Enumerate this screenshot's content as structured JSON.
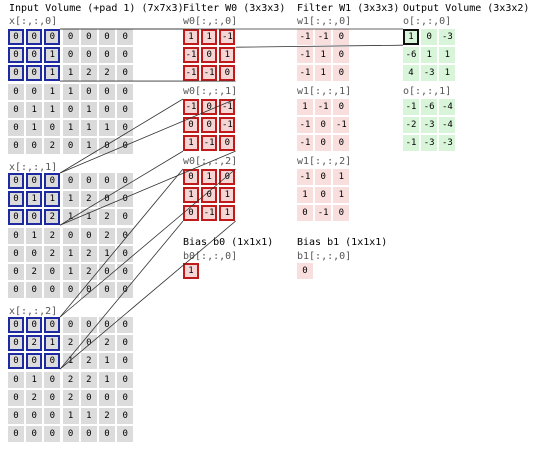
{
  "labels": {
    "input_title": "Input Volume (+pad 1) (7x7x3)",
    "filter0_title": "Filter W0 (3x3x3)",
    "filter1_title": "Filter W1 (3x3x3)",
    "output_title": "Output Volume (3x3x2)",
    "bias0_title": "Bias b0 (1x1x1)",
    "bias1_title": "Bias b1 (1x1x1)"
  },
  "input": [
    {
      "label": "x[:,:,0]",
      "grid": [
        [
          "0",
          "0",
          "0",
          "0",
          "0",
          "0",
          "0"
        ],
        [
          "0",
          "0",
          "1",
          "0",
          "0",
          "0",
          "0"
        ],
        [
          "0",
          "0",
          "1",
          "1",
          "2",
          "2",
          "0"
        ],
        [
          "0",
          "0",
          "1",
          "1",
          "0",
          "0",
          "0"
        ],
        [
          "0",
          "1",
          "1",
          "0",
          "1",
          "0",
          "0"
        ],
        [
          "0",
          "1",
          "0",
          "1",
          "1",
          "1",
          "0"
        ],
        [
          "0",
          "0",
          "2",
          "0",
          "1",
          "0",
          "0"
        ]
      ]
    },
    {
      "label": "x[:,:,1]",
      "grid": [
        [
          "0",
          "0",
          "0",
          "0",
          "0",
          "0",
          "0"
        ],
        [
          "0",
          "1",
          "1",
          "1",
          "2",
          "0",
          "0"
        ],
        [
          "0",
          "0",
          "2",
          "1",
          "1",
          "2",
          "0"
        ],
        [
          "0",
          "1",
          "2",
          "0",
          "0",
          "2",
          "0"
        ],
        [
          "0",
          "0",
          "2",
          "1",
          "2",
          "1",
          "0"
        ],
        [
          "0",
          "2",
          "0",
          "1",
          "2",
          "0",
          "0"
        ],
        [
          "0",
          "0",
          "0",
          "0",
          "0",
          "0",
          "0"
        ]
      ]
    },
    {
      "label": "x[:,:,2]",
      "grid": [
        [
          "0",
          "0",
          "0",
          "0",
          "0",
          "0",
          "0"
        ],
        [
          "0",
          "2",
          "1",
          "2",
          "0",
          "2",
          "0"
        ],
        [
          "0",
          "0",
          "0",
          "1",
          "2",
          "1",
          "0"
        ],
        [
          "0",
          "1",
          "0",
          "2",
          "2",
          "1",
          "0"
        ],
        [
          "0",
          "2",
          "0",
          "2",
          "0",
          "0",
          "0"
        ],
        [
          "0",
          "0",
          "0",
          "1",
          "1",
          "2",
          "0"
        ],
        [
          "0",
          "0",
          "0",
          "0",
          "0",
          "0",
          "0"
        ]
      ]
    }
  ],
  "filter_w0": [
    {
      "label": "w0[:,:,0]",
      "grid": [
        [
          "1",
          "1",
          "-1"
        ],
        [
          "-1",
          "0",
          "1"
        ],
        [
          "-1",
          "-1",
          "0"
        ]
      ]
    },
    {
      "label": "w0[:,:,1]",
      "grid": [
        [
          "-1",
          "0",
          "-1"
        ],
        [
          "0",
          "0",
          "-1"
        ],
        [
          "1",
          "-1",
          "0"
        ]
      ]
    },
    {
      "label": "w0[:,:,2]",
      "grid": [
        [
          "0",
          "1",
          "0"
        ],
        [
          "1",
          "0",
          "1"
        ],
        [
          "0",
          "-1",
          "1"
        ]
      ]
    }
  ],
  "filter_w1": [
    {
      "label": "w1[:,:,0]",
      "grid": [
        [
          "-1",
          "-1",
          "0"
        ],
        [
          "-1",
          "1",
          "0"
        ],
        [
          "-1",
          "1",
          "0"
        ]
      ]
    },
    {
      "label": "w1[:,:,1]",
      "grid": [
        [
          "1",
          "-1",
          "0"
        ],
        [
          "-1",
          "0",
          "-1"
        ],
        [
          "-1",
          "0",
          "0"
        ]
      ]
    },
    {
      "label": "w1[:,:,2]",
      "grid": [
        [
          "-1",
          "0",
          "1"
        ],
        [
          "1",
          "0",
          "1"
        ],
        [
          "0",
          "-1",
          "0"
        ]
      ]
    }
  ],
  "bias_b0": {
    "label": "b0[:,:,0]",
    "value": "1"
  },
  "bias_b1": {
    "label": "b1[:,:,0]",
    "value": "0"
  },
  "output": [
    {
      "label": "o[:,:,0]",
      "grid": [
        [
          "1",
          "0",
          "-3"
        ],
        [
          "-6",
          "1",
          "1"
        ],
        [
          "4",
          "-3",
          "1"
        ]
      ]
    },
    {
      "label": "o[:,:,1]",
      "grid": [
        [
          "-1",
          "-6",
          "-4"
        ],
        [
          "-2",
          "-3",
          "-4"
        ],
        [
          "-1",
          "-3",
          "-3"
        ]
      ]
    }
  ]
}
